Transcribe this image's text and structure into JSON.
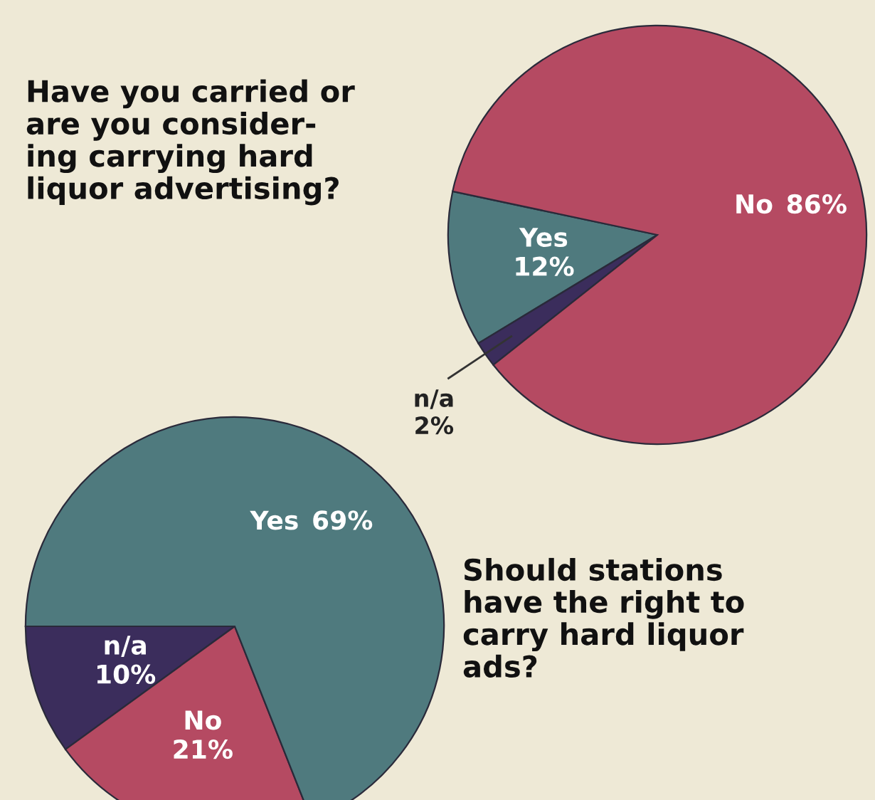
{
  "chart_data": [
    {
      "type": "pie",
      "title": "Have you carried or\nare you consider-\ning carrying hard\nliquor advertising?",
      "categories": [
        "Yes",
        "n/a",
        "No"
      ],
      "values": [
        12,
        2,
        86
      ],
      "colors": [
        "#4f7a7e",
        "#3b2d5c",
        "#b54a62"
      ],
      "value_labels": [
        "12%",
        "2%",
        "86%"
      ]
    },
    {
      "type": "pie",
      "title": "Should stations\nhave the right to\ncarry hard liquor\nads?",
      "categories": [
        "n/a",
        "No",
        "Yes"
      ],
      "values": [
        10,
        21,
        69
      ],
      "colors": [
        "#3b2d5c",
        "#b54a62",
        "#4f7a7e"
      ],
      "value_labels": [
        "10%",
        "21%",
        "69%"
      ]
    }
  ]
}
